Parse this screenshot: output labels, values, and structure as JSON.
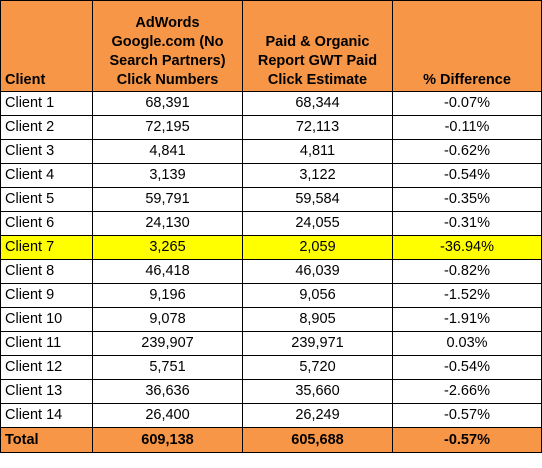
{
  "table": {
    "headers": {
      "client": "Client",
      "adwords": "AdWords Google.com (No Search Partners) Click Numbers",
      "gwt": "Paid & Organic Report GWT Paid Click Estimate",
      "diff": "% Difference"
    },
    "rows": [
      {
        "client": "Client 1",
        "adwords": "68,391",
        "gwt": "68,344",
        "diff": "-0.07%"
      },
      {
        "client": "Client 2",
        "adwords": "72,195",
        "gwt": "72,113",
        "diff": "-0.11%"
      },
      {
        "client": "Client 3",
        "adwords": "4,841",
        "gwt": "4,811",
        "diff": "-0.62%"
      },
      {
        "client": "Client 4",
        "adwords": "3,139",
        "gwt": "3,122",
        "diff": "-0.54%"
      },
      {
        "client": "Client 5",
        "adwords": "59,791",
        "gwt": "59,584",
        "diff": "-0.35%"
      },
      {
        "client": "Client 6",
        "adwords": "24,130",
        "gwt": "24,055",
        "diff": "-0.31%"
      },
      {
        "client": "Client 7",
        "adwords": "3,265",
        "gwt": "2,059",
        "diff": "-36.94%"
      },
      {
        "client": "Client 8",
        "adwords": "46,418",
        "gwt": "46,039",
        "diff": "-0.82%"
      },
      {
        "client": "Client 9",
        "adwords": "9,196",
        "gwt": "9,056",
        "diff": "-1.52%"
      },
      {
        "client": "Client 10",
        "adwords": "9,078",
        "gwt": "8,905",
        "diff": "-1.91%"
      },
      {
        "client": "Client 11",
        "adwords": "239,907",
        "gwt": "239,971",
        "diff": "0.03%"
      },
      {
        "client": "Client 12",
        "adwords": "5,751",
        "gwt": "5,720",
        "diff": "-0.54%"
      },
      {
        "client": "Client 13",
        "adwords": "36,636",
        "gwt": "35,660",
        "diff": "-2.66%"
      },
      {
        "client": "Client 14",
        "adwords": "26,400",
        "gwt": "26,249",
        "diff": "-0.57%"
      }
    ],
    "total": {
      "client": "Total",
      "adwords": "609,138",
      "gwt": "605,688",
      "diff": "-0.57%"
    },
    "highlighted_row": "Client 7"
  },
  "colors": {
    "header_fill": "#f79646",
    "highlight_fill": "#ffff00",
    "border": "#000000"
  }
}
